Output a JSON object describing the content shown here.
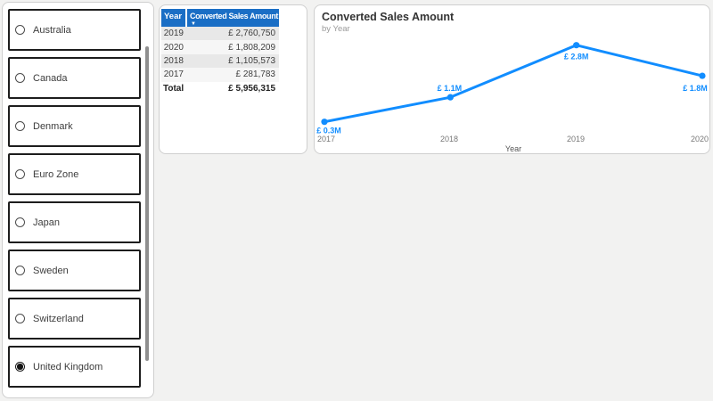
{
  "slicer": {
    "items": [
      {
        "label": "Australia",
        "selected": false
      },
      {
        "label": "Canada",
        "selected": false
      },
      {
        "label": "Denmark",
        "selected": false
      },
      {
        "label": "Euro Zone",
        "selected": false
      },
      {
        "label": "Japan",
        "selected": false
      },
      {
        "label": "Sweden",
        "selected": false
      },
      {
        "label": "Switzerland",
        "selected": false
      },
      {
        "label": "United Kingdom",
        "selected": true
      }
    ]
  },
  "table": {
    "columns": [
      "Year",
      "Converted Sales Amount"
    ],
    "sort_icon": "▼",
    "rows": [
      [
        "2019",
        "£ 2,760,750"
      ],
      [
        "2020",
        "£ 1,808,209"
      ],
      [
        "2018",
        "£ 1,105,573"
      ],
      [
        "2017",
        "£ 281,783"
      ]
    ],
    "total": {
      "label": "Total",
      "value": "£ 5,956,315"
    }
  },
  "chart": {
    "title": "Converted Sales Amount",
    "subtitle": "by Year",
    "xlabel": "Year"
  },
  "chart_data": {
    "type": "line",
    "title": "Converted Sales Amount",
    "subtitle": "by Year",
    "series_name": "Converted Sales Amount",
    "x": [
      "2017",
      "2018",
      "2019",
      "2020"
    ],
    "values_millions": [
      0.3,
      1.1,
      2.8,
      1.8
    ],
    "point_labels": [
      "£ 0.3M",
      "£ 1.1M",
      "£ 2.8M",
      "£ 1.8M"
    ],
    "xlabel": "Year",
    "ylim_millions": [
      0,
      3
    ],
    "grid": false,
    "legend": "none"
  },
  "colors": {
    "accent_blue": "#118DFF",
    "table_header_blue": "#1A6EC5",
    "axis_text": "#777777",
    "slicer_border": "#1d1d1d"
  }
}
